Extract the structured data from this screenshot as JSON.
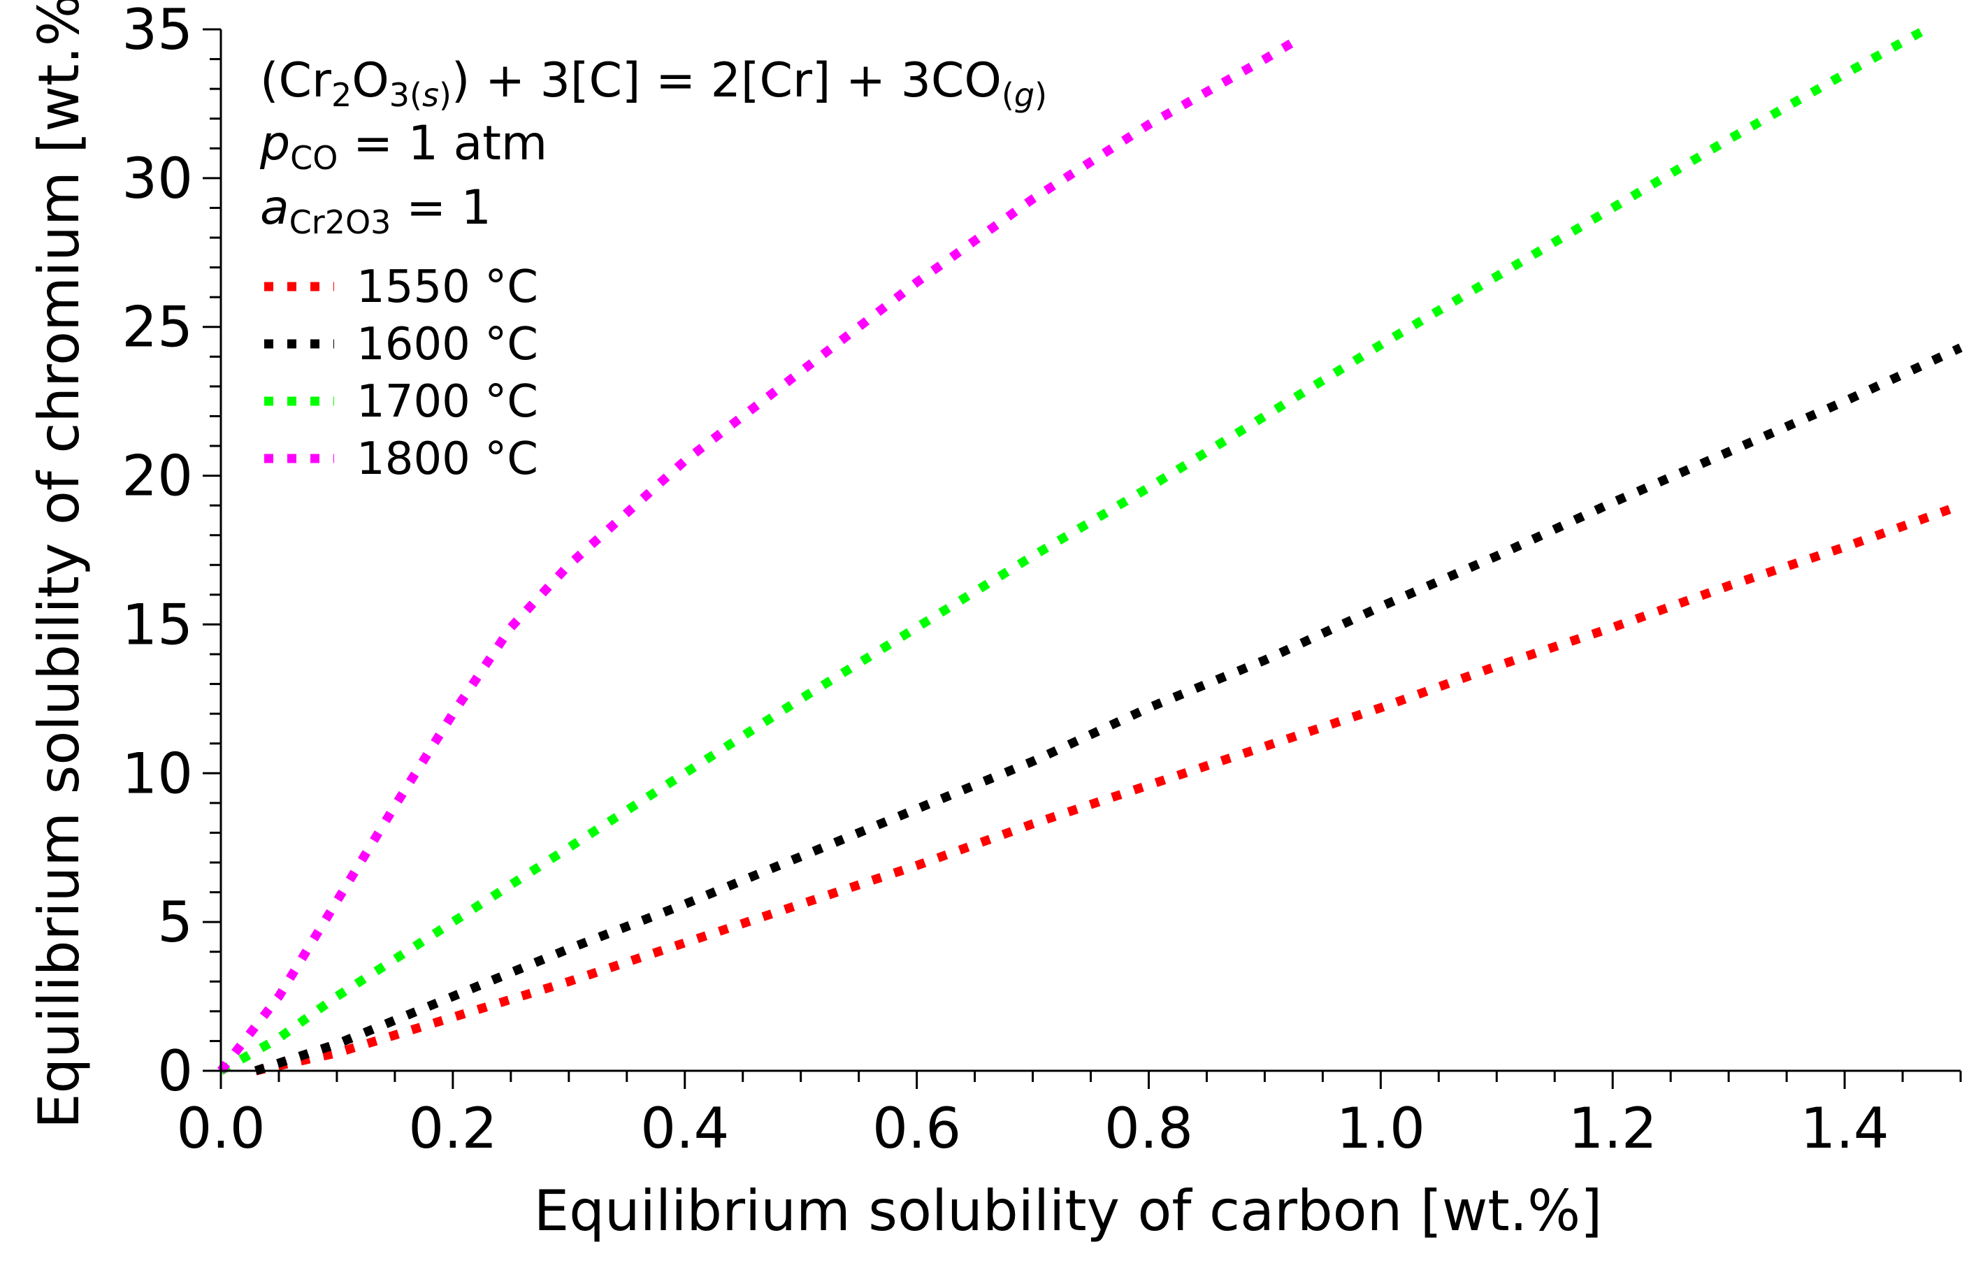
{
  "chart_data": {
    "type": "line",
    "title": "",
    "xlabel": "Equilibrium solubility of carbon [wt.%]",
    "ylabel": "Equilibrium solubility of chromium [wt.%]",
    "xlim": [
      0,
      1.5
    ],
    "ylim": [
      0,
      35
    ],
    "grid": false,
    "legend_position": "top-left",
    "x_ticks": [
      {
        "value": 0.0,
        "label": "0.0"
      },
      {
        "value": 0.2,
        "label": "0.2"
      },
      {
        "value": 0.4,
        "label": "0.4"
      },
      {
        "value": 0.6,
        "label": "0.6"
      },
      {
        "value": 0.8,
        "label": "0.8"
      },
      {
        "value": 1.0,
        "label": "1.0"
      },
      {
        "value": 1.2,
        "label": "1.2"
      },
      {
        "value": 1.4,
        "label": "1.4"
      }
    ],
    "y_ticks": [
      {
        "value": 0,
        "label": "0"
      },
      {
        "value": 5,
        "label": "5"
      },
      {
        "value": 10,
        "label": "10"
      },
      {
        "value": 15,
        "label": "15"
      },
      {
        "value": 20,
        "label": "20"
      },
      {
        "value": 25,
        "label": "25"
      },
      {
        "value": 30,
        "label": "30"
      },
      {
        "value": 35,
        "label": "35"
      }
    ],
    "annotations": {
      "reaction": {
        "p1": "(Cr",
        "s1": "2",
        "p2": "O",
        "s2": "3(",
        "s3": "s",
        "s4": ")",
        "p3": ") + 3[C] = 2[Cr] + 3CO",
        "s5": "(",
        "s6": "g",
        "s7": ")"
      },
      "pressure": {
        "symbol": "p",
        "subscript": "CO",
        "rest": " = 1 atm"
      },
      "activity": {
        "symbol": "a",
        "subscript": "Cr2O3",
        "rest": " = 1"
      }
    },
    "series": [
      {
        "name": "1550 °C",
        "color": "#ff0000",
        "x": [
          0.03,
          0.1,
          0.2,
          0.3,
          0.4,
          0.5,
          0.6,
          0.7,
          0.8,
          0.9,
          1.0,
          1.1,
          1.2,
          1.3,
          1.4,
          1.5
        ],
        "y": [
          0.0,
          0.6,
          1.8,
          3.0,
          4.3,
          5.6,
          6.9,
          8.3,
          9.6,
          10.9,
          12.2,
          13.6,
          14.9,
          16.3,
          17.6,
          19.0
        ]
      },
      {
        "name": "1600 °C",
        "color": "#000000",
        "x": [
          0.03,
          0.1,
          0.2,
          0.3,
          0.4,
          0.5,
          0.6,
          0.7,
          0.8,
          0.9,
          1.0,
          1.1,
          1.2,
          1.3,
          1.4,
          1.5
        ],
        "y": [
          0.0,
          0.9,
          2.5,
          4.1,
          5.6,
          7.2,
          8.8,
          10.4,
          12.2,
          13.8,
          15.6,
          17.3,
          19.1,
          20.8,
          22.5,
          24.3
        ]
      },
      {
        "name": "1700 °C",
        "color": "#00ff00",
        "x": [
          0.0,
          0.05,
          0.1,
          0.2,
          0.3,
          0.4,
          0.5,
          0.6,
          0.7,
          0.8,
          0.9,
          1.0,
          1.1,
          1.2,
          1.3,
          1.4,
          1.47
        ],
        "y": [
          0.0,
          1.1,
          2.5,
          5.0,
          7.5,
          10.0,
          12.5,
          14.9,
          17.3,
          19.6,
          22.0,
          24.4,
          26.7,
          29.0,
          31.3,
          33.5,
          35.0
        ]
      },
      {
        "name": "1800 °C",
        "color": "#ff00ff",
        "x": [
          0.0,
          0.05,
          0.1,
          0.15,
          0.2,
          0.25,
          0.3,
          0.4,
          0.5,
          0.6,
          0.7,
          0.8,
          0.9,
          0.93
        ],
        "y": [
          0.0,
          2.5,
          5.7,
          8.9,
          12.0,
          14.9,
          17.0,
          20.5,
          23.5,
          26.5,
          29.3,
          31.8,
          34.0,
          34.7
        ]
      }
    ]
  }
}
